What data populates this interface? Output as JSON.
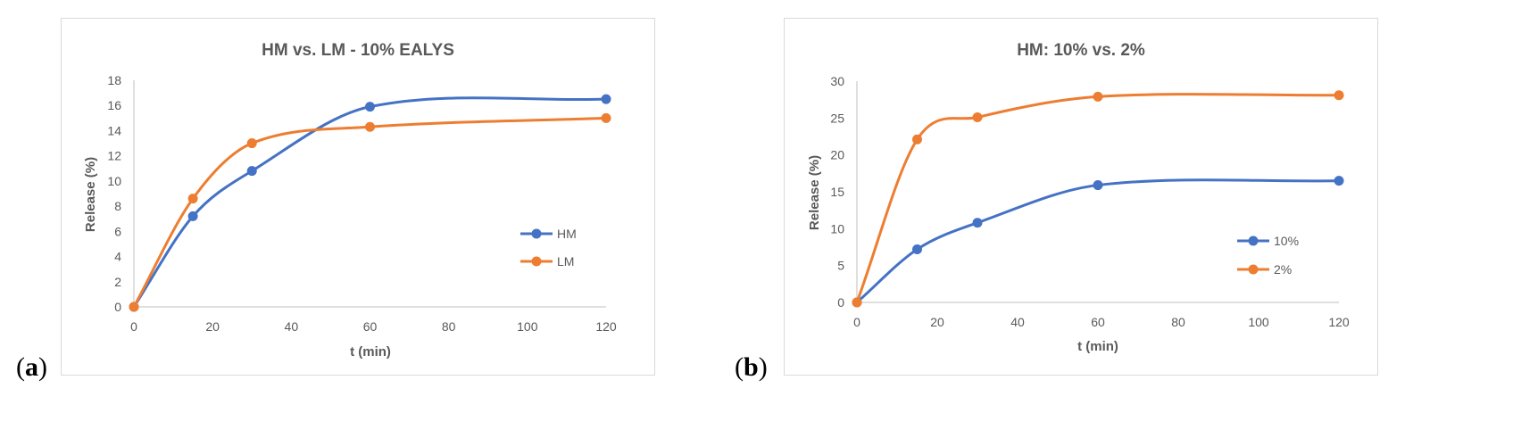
{
  "panel_labels": [
    {
      "open": "(",
      "letter": "a",
      "close": ")"
    },
    {
      "open": "(",
      "letter": "b",
      "close": ")"
    }
  ],
  "colors": {
    "blue": "#4472C4",
    "orange": "#ED7D31",
    "grid": "#D9D9D9",
    "axis": "#BFBFBF",
    "text": "#595959"
  },
  "chart_data": [
    {
      "type": "line",
      "title": "HM vs. LM - 10% EALYS",
      "xlabel": "t (min)",
      "ylabel": "Release (%)",
      "xlim": [
        0,
        120
      ],
      "ylim": [
        0,
        18
      ],
      "xticks": [
        0,
        20,
        40,
        60,
        80,
        100,
        120
      ],
      "yticks": [
        0,
        2,
        4,
        6,
        8,
        10,
        12,
        14,
        16,
        18
      ],
      "grid": false,
      "legend_position": "right",
      "series": [
        {
          "name": "HM",
          "color": "#4472C4",
          "x": [
            0,
            15,
            30,
            60,
            120
          ],
          "y": [
            0,
            7.2,
            10.8,
            15.9,
            16.5
          ]
        },
        {
          "name": "LM",
          "color": "#ED7D31",
          "x": [
            0,
            15,
            30,
            60,
            120
          ],
          "y": [
            0,
            8.6,
            13.0,
            14.3,
            15.0
          ]
        }
      ]
    },
    {
      "type": "line",
      "title": "HM: 10% vs. 2%",
      "xlabel": "t (min)",
      "ylabel": "Release (%)",
      "xlim": [
        0,
        120
      ],
      "ylim": [
        0,
        30
      ],
      "xticks": [
        0,
        20,
        40,
        60,
        80,
        100,
        120
      ],
      "yticks": [
        0,
        5,
        10,
        15,
        20,
        25,
        30
      ],
      "grid": false,
      "legend_position": "right",
      "series": [
        {
          "name": "10%",
          "color": "#4472C4",
          "x": [
            0,
            15,
            30,
            60,
            120
          ],
          "y": [
            0,
            7.2,
            10.8,
            15.9,
            16.5
          ]
        },
        {
          "name": "2%",
          "color": "#ED7D31",
          "x": [
            0,
            15,
            30,
            60,
            120
          ],
          "y": [
            0,
            22.1,
            25.1,
            27.9,
            28.1
          ]
        }
      ]
    }
  ]
}
